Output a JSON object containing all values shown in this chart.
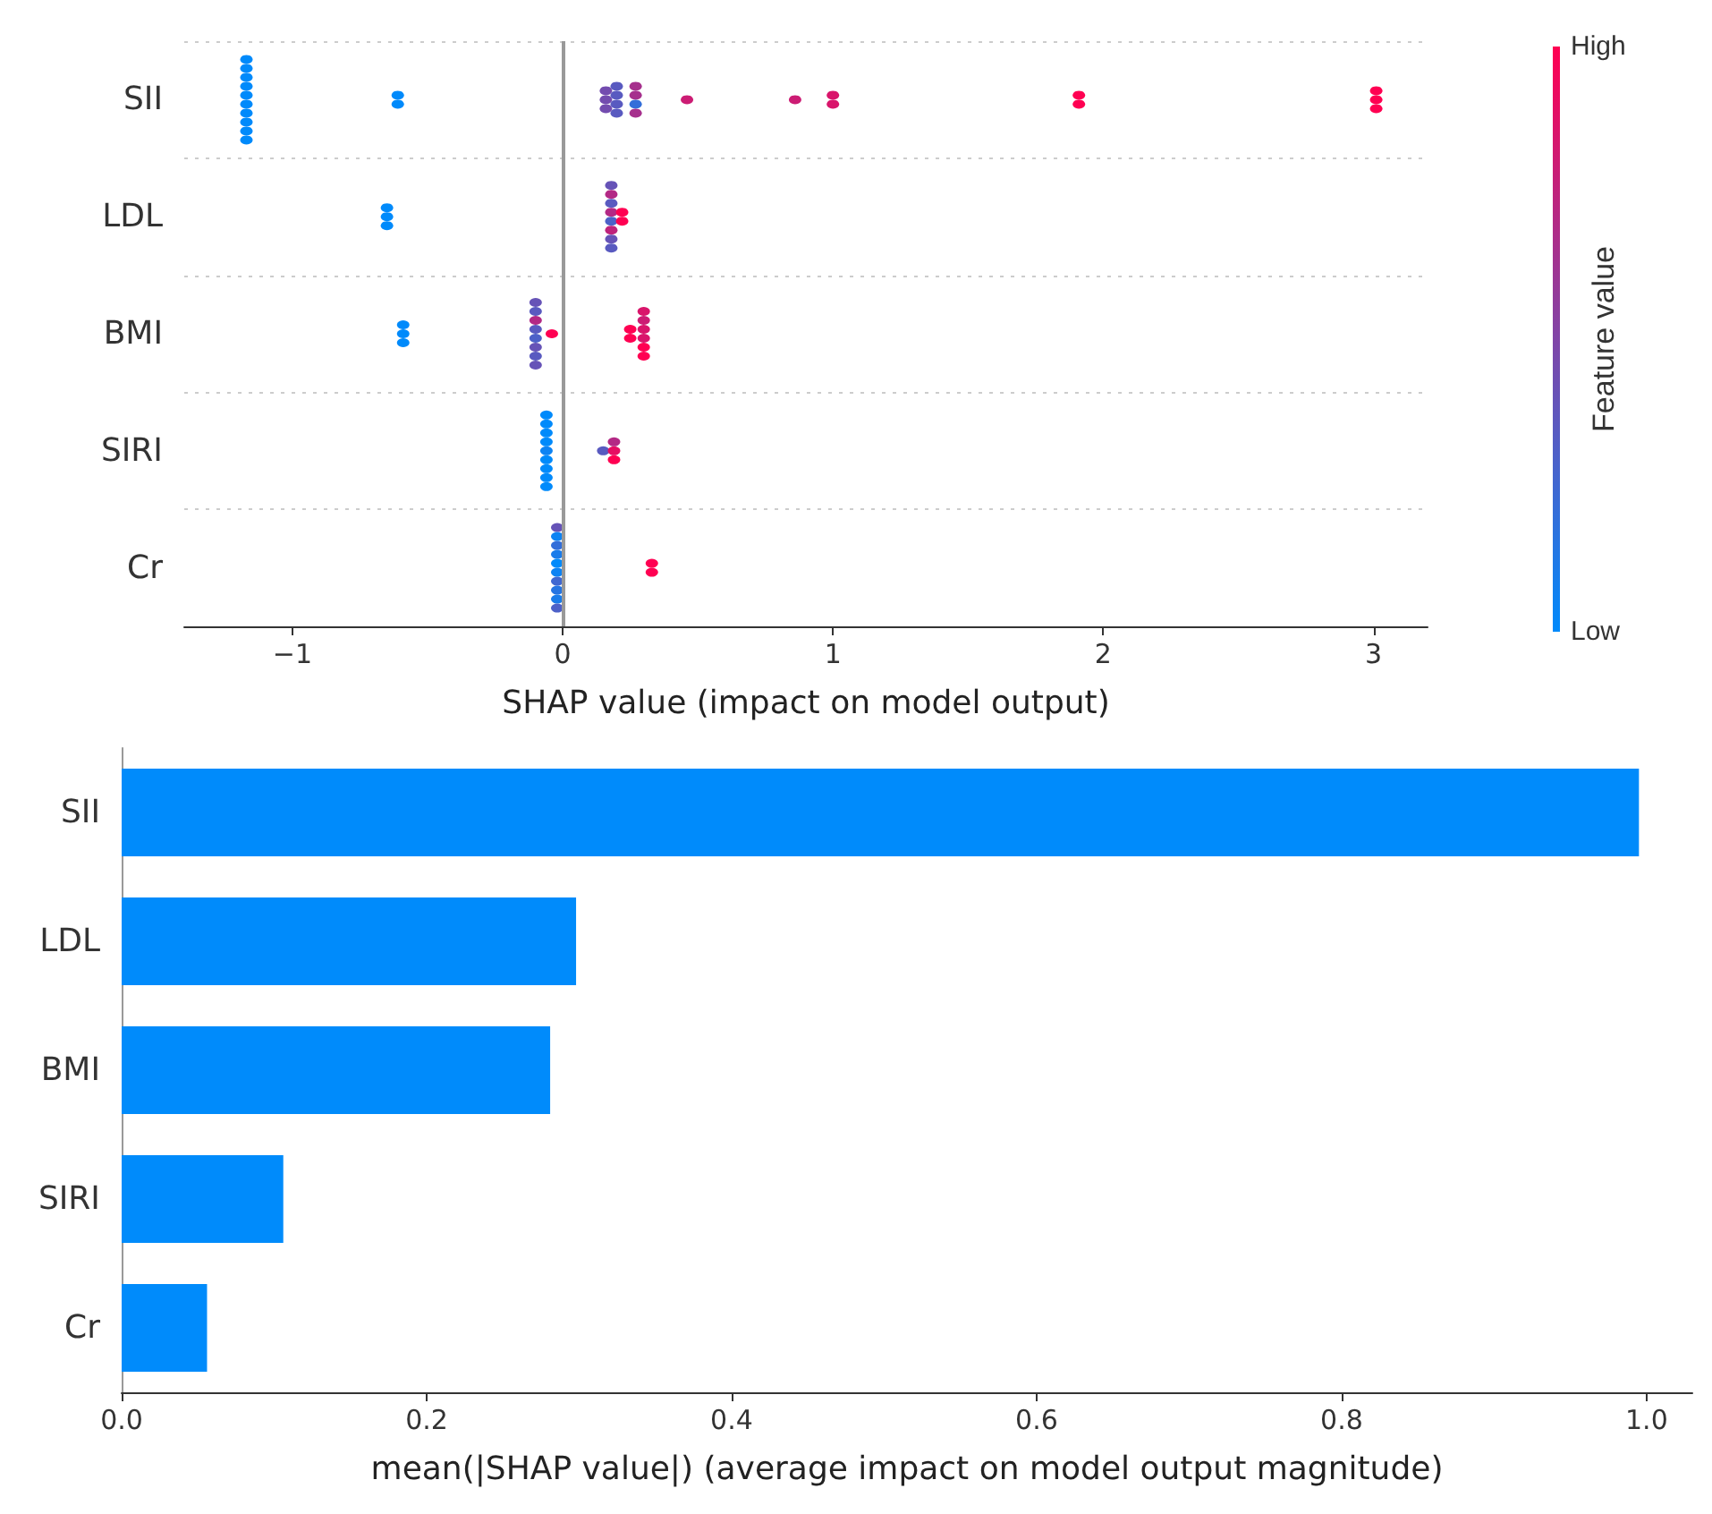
{
  "chart_data": [
    {
      "type": "scatter",
      "orientation": "horizontal",
      "categories": [
        "SII",
        "LDL",
        "BMI",
        "SIRI",
        "Cr"
      ],
      "xlabel": "SHAP value (impact on model output)",
      "clabel": "Feature value",
      "annotations": [
        "High",
        "Low"
      ],
      "xlim": [
        -1.4,
        3.2
      ],
      "xticks": [
        {
          "value": -1,
          "label": "−1"
        },
        0,
        1,
        2,
        3
      ],
      "grid": "y",
      "marker": "circle",
      "ref_lines": [
        {
          "axis": "x",
          "value": 0,
          "color": "#999999"
        }
      ],
      "series": [
        {
          "x": [
            "SII",
            "SII",
            "SII",
            "SII",
            "SII",
            "SII",
            "SII",
            "SII",
            "SII",
            "SII",
            "SII",
            "SII",
            "SII",
            "SII",
            "SII",
            "SII",
            "SII",
            "SII",
            "SII",
            "SII",
            "SII",
            "SII",
            "SII",
            "SII",
            "SII",
            "SII",
            "SII",
            "SII",
            "SII",
            "SII",
            "SII",
            "SII"
          ],
          "values": [
            -1.17,
            -1.17,
            -1.17,
            -1.17,
            -1.17,
            -1.17,
            -1.17,
            -1.17,
            -1.17,
            -1.17,
            -0.61,
            -0.61,
            0.16,
            0.16,
            0.16,
            0.2,
            0.2,
            0.2,
            0.2,
            0.27,
            0.27,
            0.27,
            0.27,
            0.46,
            0.86,
            1.0,
            1.0,
            1.91,
            1.91,
            3.01,
            3.01,
            3.01
          ],
          "colors": [
            "#008afb",
            "#008afb",
            "#008afb",
            "#008afb",
            "#008afb",
            "#008afb",
            "#008afb",
            "#008afb",
            "#008afb",
            "#008afb",
            "#008afb",
            "#008afb",
            "#734caf",
            "#734caf",
            "#734caf",
            "#595ac0",
            "#595ac0",
            "#595ac0",
            "#595ac0",
            "#a6308d",
            "#a6308d",
            "#336ed9",
            "#a6308d",
            "#cc1c74",
            "#cc1c74",
            "#d9156b",
            "#d9156b",
            "#ff0052",
            "#ff0052",
            "#ff0052",
            "#ff0052",
            "#ff0052"
          ]
        },
        {
          "x": [
            "LDL",
            "LDL",
            "LDL",
            "LDL",
            "LDL",
            "LDL",
            "LDL",
            "LDL",
            "LDL",
            "LDL",
            "LDL",
            "LDL",
            "LDL"
          ],
          "values": [
            -0.65,
            -0.65,
            -0.65,
            0.18,
            0.18,
            0.18,
            0.18,
            0.18,
            0.18,
            0.18,
            0.18,
            0.22,
            0.22
          ],
          "colors": [
            "#008afb",
            "#008afb",
            "#008afb",
            "#6653b7",
            "#b32985",
            "#595ac0",
            "#b32985",
            "#4d61c8",
            "#bf237c",
            "#6653b7",
            "#595ac0",
            "#ff0052",
            "#ff0052"
          ]
        },
        {
          "x": [
            "BMI",
            "BMI",
            "BMI",
            "BMI",
            "BMI",
            "BMI",
            "BMI",
            "BMI",
            "BMI",
            "BMI",
            "BMI",
            "BMI",
            "BMI",
            "BMI",
            "BMI",
            "BMI",
            "BMI",
            "BMI",
            "BMI",
            "BMI"
          ],
          "values": [
            -0.59,
            -0.59,
            -0.59,
            -0.1,
            -0.1,
            -0.1,
            -0.1,
            -0.1,
            -0.1,
            -0.1,
            -0.1,
            -0.04,
            0.25,
            0.25,
            0.3,
            0.3,
            0.3,
            0.3,
            0.3,
            0.3
          ],
          "colors": [
            "#008afb",
            "#008afb",
            "#008afb",
            "#6653b7",
            "#595ac0",
            "#b32985",
            "#595ac0",
            "#4d61c8",
            "#6653b7",
            "#595ac0",
            "#6653b7",
            "#ff0052",
            "#ff0052",
            "#ff0052",
            "#d9156b",
            "#cc1c74",
            "#d9156b",
            "#d9156b",
            "#ff0052",
            "#ff0052"
          ]
        },
        {
          "x": [
            "SIRI",
            "SIRI",
            "SIRI",
            "SIRI",
            "SIRI",
            "SIRI",
            "SIRI",
            "SIRI",
            "SIRI",
            "SIRI",
            "SIRI",
            "SIRI",
            "SIRI"
          ],
          "values": [
            -0.06,
            -0.06,
            -0.06,
            -0.06,
            -0.06,
            -0.06,
            -0.06,
            -0.06,
            -0.06,
            0.15,
            0.19,
            0.19,
            0.19
          ],
          "colors": [
            "#008afb",
            "#008afb",
            "#008afb",
            "#008afb",
            "#0d83f3",
            "#008afb",
            "#008afb",
            "#008afb",
            "#008afb",
            "#595ac0",
            "#b32985",
            "#e60e63",
            "#ff0052"
          ]
        },
        {
          "x": [
            "Cr",
            "Cr",
            "Cr",
            "Cr",
            "Cr",
            "Cr",
            "Cr",
            "Cr",
            "Cr",
            "Cr",
            "Cr",
            "Cr"
          ],
          "values": [
            -0.02,
            -0.02,
            -0.02,
            -0.02,
            -0.02,
            -0.02,
            -0.02,
            -0.02,
            -0.02,
            -0.02,
            0.33,
            0.33
          ],
          "colors": [
            "#6653b7",
            "#0d83f3",
            "#336ed9",
            "#1a7cea",
            "#008afb",
            "#0d83f3",
            "#4068d1",
            "#2675e2",
            "#1a7cea",
            "#4d61c8",
            "#ff0052",
            "#ff0052"
          ]
        }
      ]
    },
    {
      "type": "bar",
      "orientation": "horizontal",
      "categories": [
        "SII",
        "LDL",
        "BMI",
        "SIRI",
        "Cr"
      ],
      "values": [
        0.995,
        0.298,
        0.281,
        0.106,
        0.056
      ],
      "color": "#008bfb",
      "xlabel": "mean(|SHAP value|) (average impact on model output magnitude)",
      "xlim": [
        0,
        1.03
      ],
      "xticks": [
        {
          "value": 0,
          "label": "0.0"
        },
        {
          "value": 0.2,
          "label": "0.2"
        },
        {
          "value": 0.4,
          "label": "0.4"
        },
        {
          "value": 0.6,
          "label": "0.6"
        },
        {
          "value": 0.8,
          "label": "0.8"
        },
        {
          "value": 1,
          "label": "1.0"
        }
      ],
      "grid": false
    }
  ]
}
